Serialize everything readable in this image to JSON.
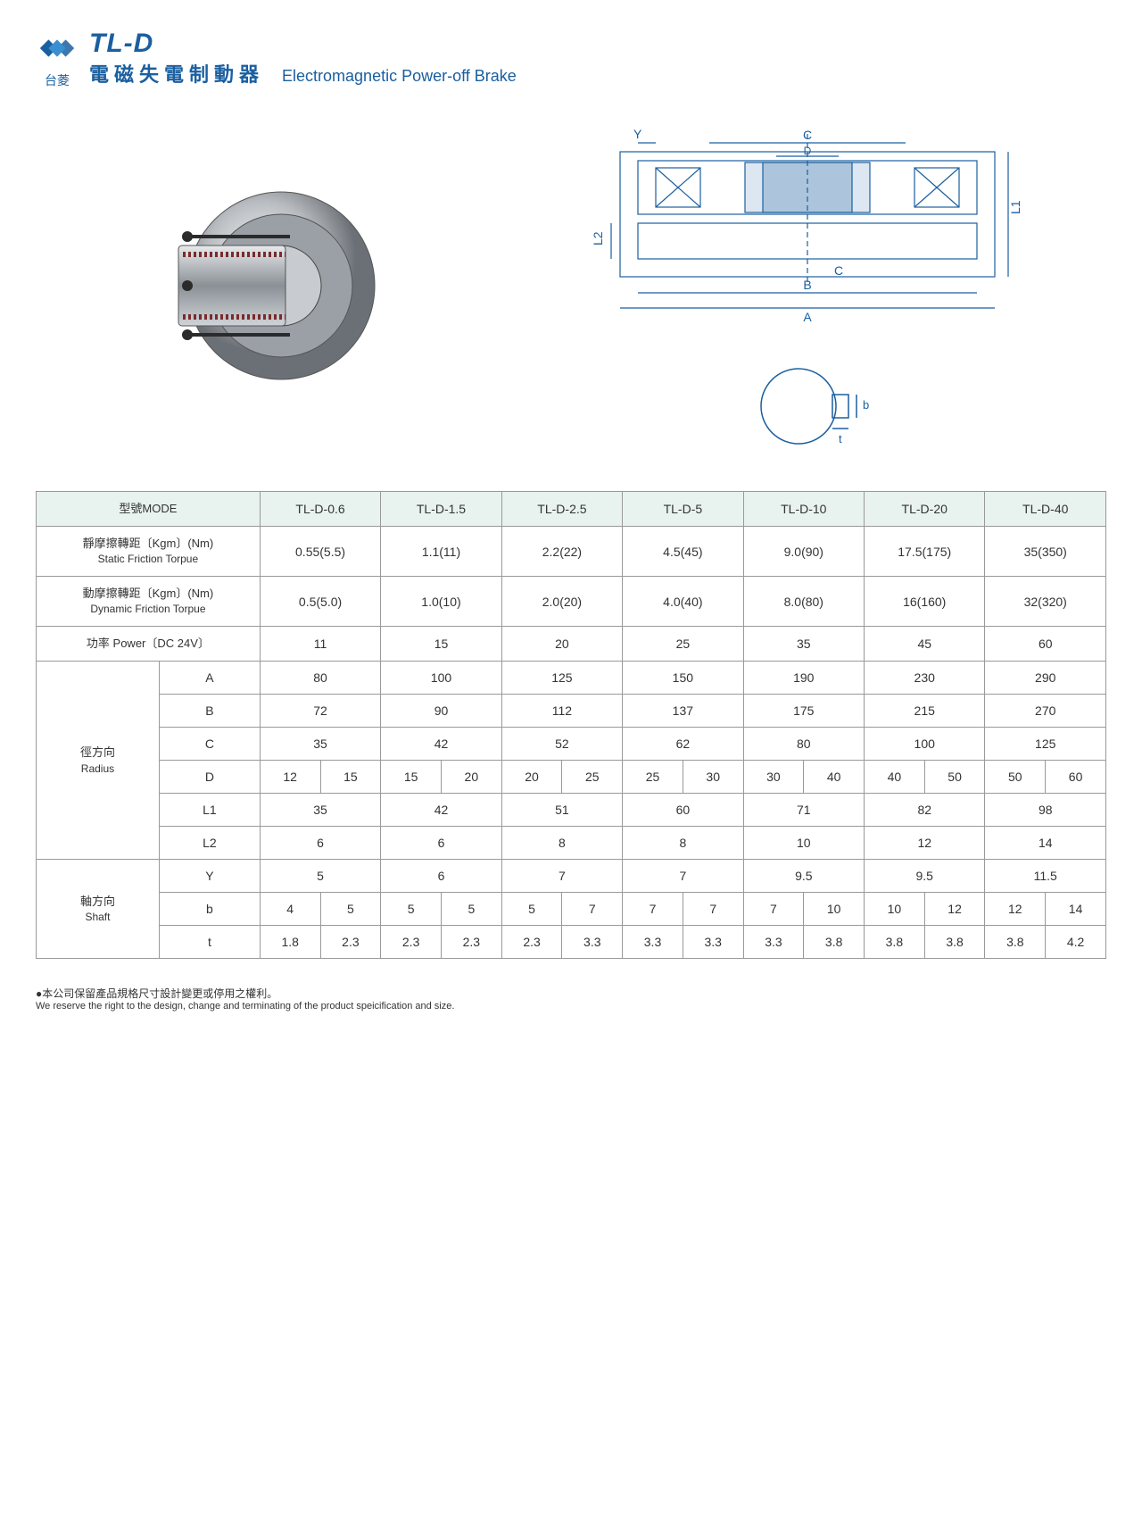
{
  "header": {
    "brand_cn": "台菱",
    "model_code": "TL-D",
    "title_cn": "電磁失電制動器",
    "title_en": "Electromagnetic Power-off Brake",
    "logo_color": "#1a5fa0"
  },
  "colors": {
    "primary": "#1a5fa0",
    "header_bg": "#e8f3ef",
    "border": "#999999",
    "text": "#333333",
    "diagram_line": "#1a5fa0"
  },
  "diagram": {
    "labels": [
      "A",
      "B",
      "C",
      "D",
      "L1",
      "L2",
      "Y",
      "b",
      "t",
      "C"
    ]
  },
  "table": {
    "mode_header_cn": "型號MODE",
    "columns": [
      "TL-D-0.6",
      "TL-D-1.5",
      "TL-D-2.5",
      "TL-D-5",
      "TL-D-10",
      "TL-D-20",
      "TL-D-40"
    ],
    "rows_top": [
      {
        "label_cn": "靜摩擦轉距〔Kgm〕(Nm)",
        "label_en": "Static Friction Torpue",
        "values": [
          "0.55(5.5)",
          "1.1(11)",
          "2.2(22)",
          "4.5(45)",
          "9.0(90)",
          "17.5(175)",
          "35(350)"
        ]
      },
      {
        "label_cn": "動摩擦轉距〔Kgm〕(Nm)",
        "label_en": "Dynamic Friction Torpue",
        "values": [
          "0.5(5.0)",
          "1.0(10)",
          "2.0(20)",
          "4.0(40)",
          "8.0(80)",
          "16(160)",
          "32(320)"
        ]
      },
      {
        "label_cn": "功率 Power〔DC 24V〕",
        "label_en": "",
        "values": [
          "11",
          "15",
          "20",
          "25",
          "35",
          "45",
          "60"
        ]
      }
    ],
    "radius_group": {
      "label_cn": "徑方向",
      "label_en": "Radius",
      "rows": [
        {
          "param": "A",
          "split": false,
          "values": [
            "80",
            "100",
            "125",
            "150",
            "190",
            "230",
            "290"
          ]
        },
        {
          "param": "B",
          "split": false,
          "values": [
            "72",
            "90",
            "112",
            "137",
            "175",
            "215",
            "270"
          ]
        },
        {
          "param": "C",
          "split": false,
          "values": [
            "35",
            "42",
            "52",
            "62",
            "80",
            "100",
            "125"
          ]
        },
        {
          "param": "D",
          "split": true,
          "values": [
            "12",
            "15",
            "15",
            "20",
            "20",
            "25",
            "25",
            "30",
            "30",
            "40",
            "40",
            "50",
            "50",
            "60"
          ]
        },
        {
          "param": "L1",
          "split": false,
          "values": [
            "35",
            "42",
            "51",
            "60",
            "71",
            "82",
            "98"
          ]
        },
        {
          "param": "L2",
          "split": false,
          "values": [
            "6",
            "6",
            "8",
            "8",
            "10",
            "12",
            "14"
          ]
        }
      ]
    },
    "shaft_group": {
      "label_cn": "軸方向",
      "label_en": "Shaft",
      "rows": [
        {
          "param": "Y",
          "split": false,
          "values": [
            "5",
            "6",
            "7",
            "7",
            "9.5",
            "9.5",
            "11.5"
          ]
        },
        {
          "param": "b",
          "split": true,
          "values": [
            "4",
            "5",
            "5",
            "5",
            "5",
            "7",
            "7",
            "7",
            "7",
            "10",
            "10",
            "12",
            "12",
            "14"
          ]
        },
        {
          "param": "t",
          "split": true,
          "values": [
            "1.8",
            "2.3",
            "2.3",
            "2.3",
            "2.3",
            "3.3",
            "3.3",
            "3.3",
            "3.3",
            "3.8",
            "3.8",
            "3.8",
            "3.8",
            "4.2"
          ]
        }
      ]
    }
  },
  "footnote": {
    "cn": "●本公司保留產品規格尺寸設計變更或停用之權利。",
    "en": "We reserve the right to the design, change and terminating of the product speicification and size."
  }
}
